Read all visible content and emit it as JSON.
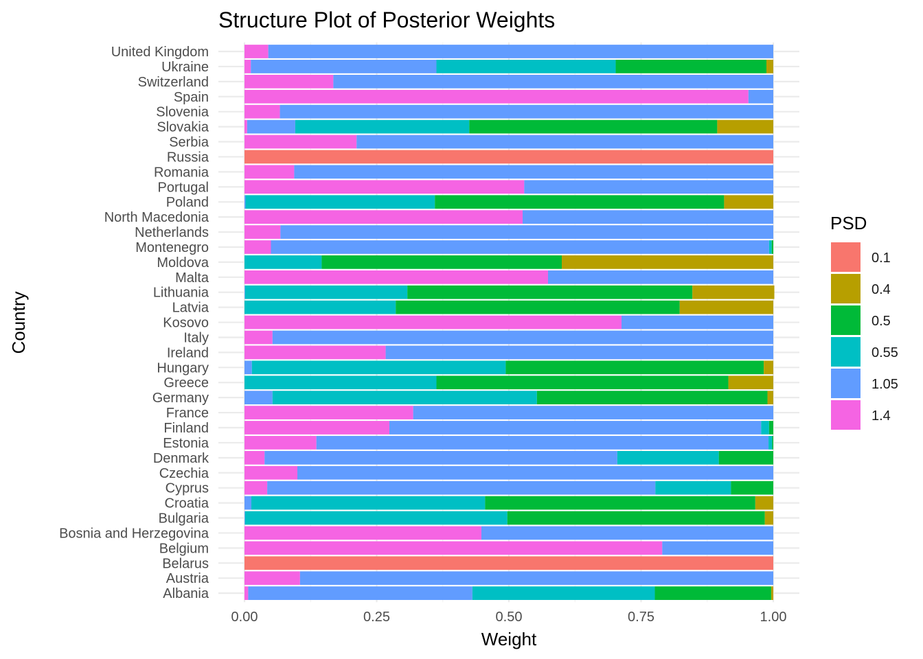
{
  "chart_data": {
    "type": "bar",
    "orientation": "horizontal",
    "stacked": true,
    "title": "Structure Plot of Posterior Weights",
    "xlabel": "Weight",
    "ylabel": "Country",
    "xlim": [
      0,
      1
    ],
    "x_ticks": [
      "0.00",
      "0.25",
      "0.50",
      "0.75",
      "1.00"
    ],
    "grid": true,
    "legend": {
      "title": "PSD",
      "position": "right"
    },
    "categories": [
      "United Kingdom",
      "Ukraine",
      "Switzerland",
      "Spain",
      "Slovenia",
      "Slovakia",
      "Serbia",
      "Russia",
      "Romania",
      "Portugal",
      "Poland",
      "North Macedonia",
      "Netherlands",
      "Montenegro",
      "Moldova",
      "Malta",
      "Lithuania",
      "Latvia",
      "Kosovo",
      "Italy",
      "Ireland",
      "Hungary",
      "Greece",
      "Germany",
      "France",
      "Finland",
      "Estonia",
      "Denmark",
      "Czechia",
      "Cyprus",
      "Croatia",
      "Bulgaria",
      "Bosnia and Herzegovina",
      "Belgium",
      "Belarus",
      "Austria",
      "Albania"
    ],
    "series": [
      {
        "name": "0.1",
        "color": "#F8766D",
        "values": [
          0,
          0,
          0,
          0,
          0,
          0,
          0,
          1.0,
          0,
          0,
          0,
          0,
          0,
          0,
          0,
          0,
          0,
          0,
          0,
          0,
          0,
          0,
          0,
          0,
          0,
          0,
          0,
          0,
          0,
          0,
          0,
          0,
          0,
          0,
          1.0,
          0,
          0
        ]
      },
      {
        "name": "0.4",
        "color": "#B79F00",
        "values": [
          0,
          0.013,
          0,
          0,
          0,
          0.106,
          0,
          0,
          0,
          0,
          0.093,
          0,
          0,
          0,
          0.4,
          0,
          0.155,
          0.177,
          0,
          0,
          0,
          0.018,
          0.085,
          0.011,
          0,
          0,
          0,
          0,
          0,
          0,
          0.034,
          0.016,
          0,
          0,
          0,
          0,
          0.004
        ]
      },
      {
        "name": "0.5",
        "color": "#00BA38",
        "values": [
          0,
          0.285,
          0,
          0,
          0,
          0.469,
          0,
          0,
          0,
          0,
          0.547,
          0,
          0,
          0.003,
          0.454,
          0,
          0.539,
          0.537,
          0,
          0,
          0,
          0.488,
          0.552,
          0.436,
          0,
          0.008,
          0.002,
          0.103,
          0,
          0.08,
          0.511,
          0.487,
          0,
          0,
          0,
          0,
          0.22
        ]
      },
      {
        "name": "0.55",
        "color": "#00BFC4",
        "values": [
          0,
          0.339,
          0,
          0,
          0,
          0.329,
          0,
          0,
          0,
          0,
          0.358,
          0,
          0,
          0.005,
          0.146,
          0,
          0.307,
          0.286,
          0,
          0,
          0,
          0.48,
          0.363,
          0.5,
          0,
          0.015,
          0.007,
          0.192,
          0,
          0.143,
          0.442,
          0.496,
          0,
          0,
          0,
          0,
          0.345
        ]
      },
      {
        "name": "1.05",
        "color": "#619CFF",
        "values": [
          0.955,
          0.351,
          0.832,
          0.047,
          0.933,
          0.091,
          0.788,
          0,
          0.906,
          0.471,
          0.002,
          0.474,
          0.932,
          0.942,
          0,
          0.426,
          0.001,
          0,
          0.287,
          0.947,
          0.733,
          0.014,
          0,
          0.053,
          0.681,
          0.703,
          0.855,
          0.667,
          0.9,
          0.734,
          0.013,
          0.001,
          0.552,
          0.21,
          0,
          0.895,
          0.424
        ]
      },
      {
        "name": "1.4",
        "color": "#F564E3",
        "values": [
          0.045,
          0.012,
          0.168,
          0.953,
          0.067,
          0.005,
          0.212,
          0,
          0.094,
          0.529,
          0,
          0.526,
          0.068,
          0.05,
          0,
          0.574,
          0,
          0,
          0.713,
          0.053,
          0.267,
          0,
          0,
          0,
          0.319,
          0.274,
          0.136,
          0.038,
          0.1,
          0.043,
          0,
          0,
          0.448,
          0.79,
          0,
          0.105,
          0.007
        ]
      }
    ]
  }
}
